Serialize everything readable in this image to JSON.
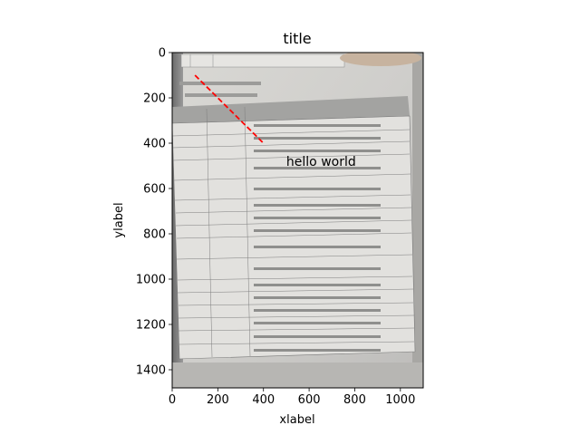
{
  "chart_data": {
    "type": "line",
    "title": "title",
    "xlabel": "xlabel",
    "ylabel": "ylabel",
    "xlim": [
      0,
      1100
    ],
    "ylim": [
      1480,
      0
    ],
    "y_inverted": true,
    "grid": false,
    "background": "image",
    "xticks": [
      0,
      200,
      400,
      600,
      800,
      1000
    ],
    "yticks": [
      0,
      200,
      400,
      600,
      800,
      1000,
      1200,
      1400
    ],
    "series": [
      {
        "x": [
          100,
          400
        ],
        "y": [
          100,
          400
        ],
        "color": "#ff0000",
        "style": "dashed"
      }
    ],
    "annotations": [
      {
        "text": "hello world",
        "x": 500,
        "y": 500
      }
    ]
  }
}
